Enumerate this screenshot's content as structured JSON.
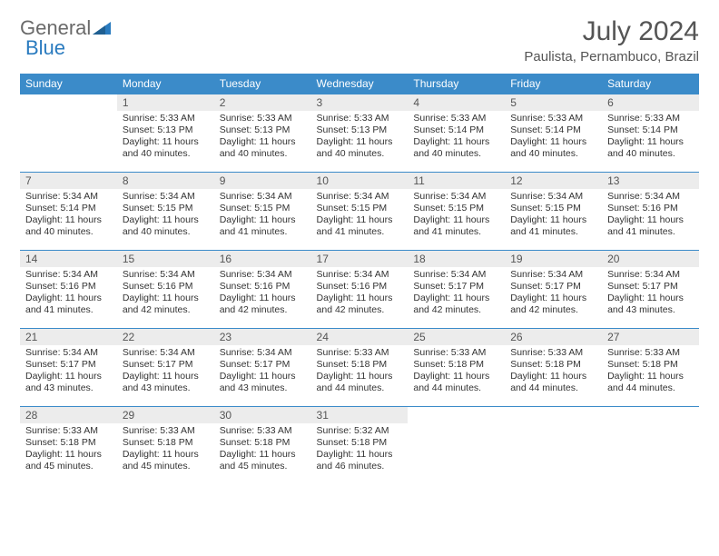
{
  "logo": {
    "text1": "General",
    "text2": "Blue"
  },
  "title": "July 2024",
  "location": "Paulista, Pernambuco, Brazil",
  "colors": {
    "header_bg": "#3b8bc9",
    "header_fg": "#ffffff",
    "daynum_bg": "#ececec",
    "border": "#3b8bc9",
    "logo_accent": "#2a7bbf",
    "text": "#333333"
  },
  "dayNames": [
    "Sunday",
    "Monday",
    "Tuesday",
    "Wednesday",
    "Thursday",
    "Friday",
    "Saturday"
  ],
  "weeks": [
    [
      null,
      {
        "n": "1",
        "sr": "5:33 AM",
        "ss": "5:13 PM",
        "dl": "11 hours and 40 minutes."
      },
      {
        "n": "2",
        "sr": "5:33 AM",
        "ss": "5:13 PM",
        "dl": "11 hours and 40 minutes."
      },
      {
        "n": "3",
        "sr": "5:33 AM",
        "ss": "5:13 PM",
        "dl": "11 hours and 40 minutes."
      },
      {
        "n": "4",
        "sr": "5:33 AM",
        "ss": "5:14 PM",
        "dl": "11 hours and 40 minutes."
      },
      {
        "n": "5",
        "sr": "5:33 AM",
        "ss": "5:14 PM",
        "dl": "11 hours and 40 minutes."
      },
      {
        "n": "6",
        "sr": "5:33 AM",
        "ss": "5:14 PM",
        "dl": "11 hours and 40 minutes."
      }
    ],
    [
      {
        "n": "7",
        "sr": "5:34 AM",
        "ss": "5:14 PM",
        "dl": "11 hours and 40 minutes."
      },
      {
        "n": "8",
        "sr": "5:34 AM",
        "ss": "5:15 PM",
        "dl": "11 hours and 40 minutes."
      },
      {
        "n": "9",
        "sr": "5:34 AM",
        "ss": "5:15 PM",
        "dl": "11 hours and 41 minutes."
      },
      {
        "n": "10",
        "sr": "5:34 AM",
        "ss": "5:15 PM",
        "dl": "11 hours and 41 minutes."
      },
      {
        "n": "11",
        "sr": "5:34 AM",
        "ss": "5:15 PM",
        "dl": "11 hours and 41 minutes."
      },
      {
        "n": "12",
        "sr": "5:34 AM",
        "ss": "5:15 PM",
        "dl": "11 hours and 41 minutes."
      },
      {
        "n": "13",
        "sr": "5:34 AM",
        "ss": "5:16 PM",
        "dl": "11 hours and 41 minutes."
      }
    ],
    [
      {
        "n": "14",
        "sr": "5:34 AM",
        "ss": "5:16 PM",
        "dl": "11 hours and 41 minutes."
      },
      {
        "n": "15",
        "sr": "5:34 AM",
        "ss": "5:16 PM",
        "dl": "11 hours and 42 minutes."
      },
      {
        "n": "16",
        "sr": "5:34 AM",
        "ss": "5:16 PM",
        "dl": "11 hours and 42 minutes."
      },
      {
        "n": "17",
        "sr": "5:34 AM",
        "ss": "5:16 PM",
        "dl": "11 hours and 42 minutes."
      },
      {
        "n": "18",
        "sr": "5:34 AM",
        "ss": "5:17 PM",
        "dl": "11 hours and 42 minutes."
      },
      {
        "n": "19",
        "sr": "5:34 AM",
        "ss": "5:17 PM",
        "dl": "11 hours and 42 minutes."
      },
      {
        "n": "20",
        "sr": "5:34 AM",
        "ss": "5:17 PM",
        "dl": "11 hours and 43 minutes."
      }
    ],
    [
      {
        "n": "21",
        "sr": "5:34 AM",
        "ss": "5:17 PM",
        "dl": "11 hours and 43 minutes."
      },
      {
        "n": "22",
        "sr": "5:34 AM",
        "ss": "5:17 PM",
        "dl": "11 hours and 43 minutes."
      },
      {
        "n": "23",
        "sr": "5:34 AM",
        "ss": "5:17 PM",
        "dl": "11 hours and 43 minutes."
      },
      {
        "n": "24",
        "sr": "5:33 AM",
        "ss": "5:18 PM",
        "dl": "11 hours and 44 minutes."
      },
      {
        "n": "25",
        "sr": "5:33 AM",
        "ss": "5:18 PM",
        "dl": "11 hours and 44 minutes."
      },
      {
        "n": "26",
        "sr": "5:33 AM",
        "ss": "5:18 PM",
        "dl": "11 hours and 44 minutes."
      },
      {
        "n": "27",
        "sr": "5:33 AM",
        "ss": "5:18 PM",
        "dl": "11 hours and 44 minutes."
      }
    ],
    [
      {
        "n": "28",
        "sr": "5:33 AM",
        "ss": "5:18 PM",
        "dl": "11 hours and 45 minutes."
      },
      {
        "n": "29",
        "sr": "5:33 AM",
        "ss": "5:18 PM",
        "dl": "11 hours and 45 minutes."
      },
      {
        "n": "30",
        "sr": "5:33 AM",
        "ss": "5:18 PM",
        "dl": "11 hours and 45 minutes."
      },
      {
        "n": "31",
        "sr": "5:32 AM",
        "ss": "5:18 PM",
        "dl": "11 hours and 46 minutes."
      },
      null,
      null,
      null
    ]
  ],
  "labels": {
    "sunrise": "Sunrise: ",
    "sunset": "Sunset: ",
    "daylight": "Daylight: "
  }
}
